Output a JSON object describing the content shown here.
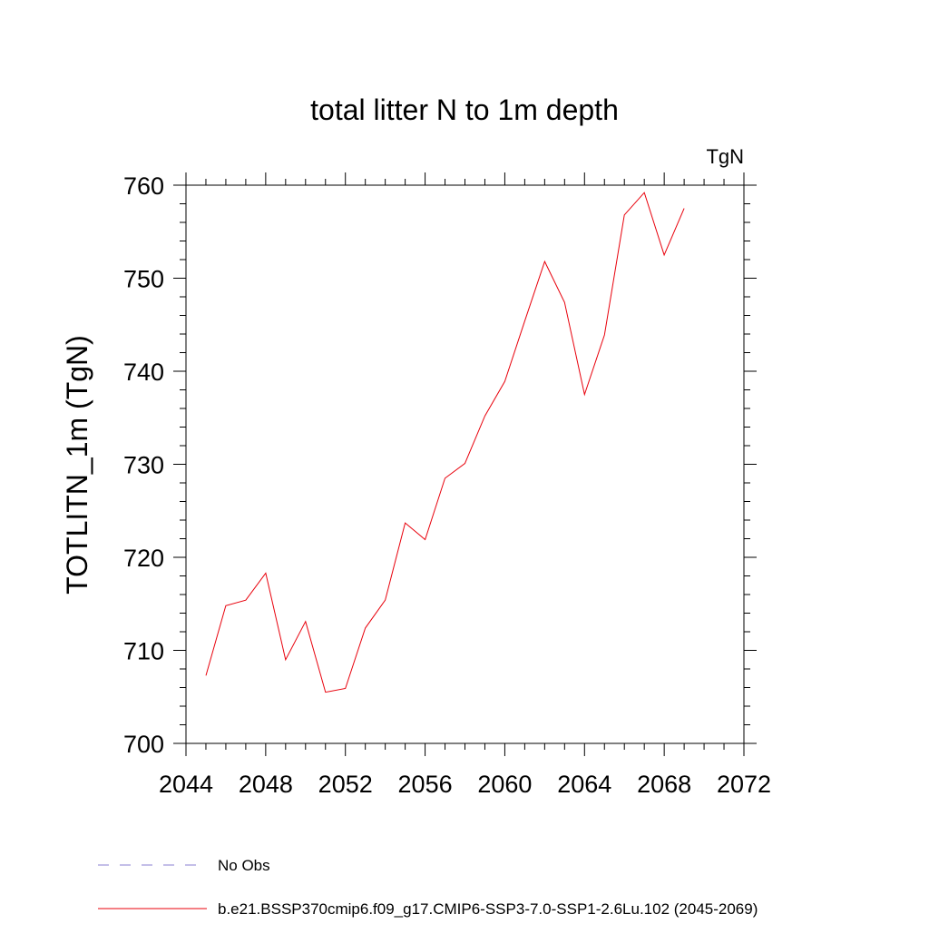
{
  "chart_data": {
    "type": "line",
    "title": "total litter N to 1m depth",
    "units": "TgN",
    "ylabel": "TOTLITN_1m  (TgN)",
    "xlabel": "",
    "xlim": [
      2044,
      2072
    ],
    "ylim": [
      700,
      760
    ],
    "x_ticks": [
      "2044",
      "2048",
      "2052",
      "2056",
      "2060",
      "2064",
      "2068",
      "2072"
    ],
    "y_ticks": [
      "700",
      "710",
      "720",
      "730",
      "740",
      "750",
      "760"
    ],
    "series": [
      {
        "name": "b.e21.BSSP370cmip6.f09_g17.CMIP6-SSP3-7.0-SSP1-2.6Lu.102 (2045-2069)",
        "color": "#e8000b",
        "x": [
          2045,
          2046,
          2047,
          2048,
          2049,
          2050,
          2051,
          2052,
          2053,
          2054,
          2055,
          2056,
          2057,
          2058,
          2059,
          2060,
          2061,
          2062,
          2063,
          2064,
          2065,
          2066,
          2067,
          2068,
          2069
        ],
        "y": [
          707.3,
          714.8,
          715.4,
          718.3,
          709.0,
          713.1,
          705.5,
          705.9,
          712.4,
          715.4,
          723.7,
          721.9,
          728.5,
          730.1,
          735.2,
          738.9,
          745.4,
          751.8,
          747.4,
          737.5,
          743.9,
          756.8,
          759.2,
          752.5,
          757.5
        ]
      }
    ],
    "legend": {
      "placement": "bottom",
      "entries": [
        {
          "label": "No Obs",
          "style": "dashed",
          "color": "#8a7fd0"
        },
        {
          "label": "b.e21.BSSP370cmip6.f09_g17.CMIP6-SSP3-7.0-SSP1-2.6Lu.102 (2045-2069)",
          "style": "solid",
          "color": "#e8000b"
        }
      ]
    }
  }
}
